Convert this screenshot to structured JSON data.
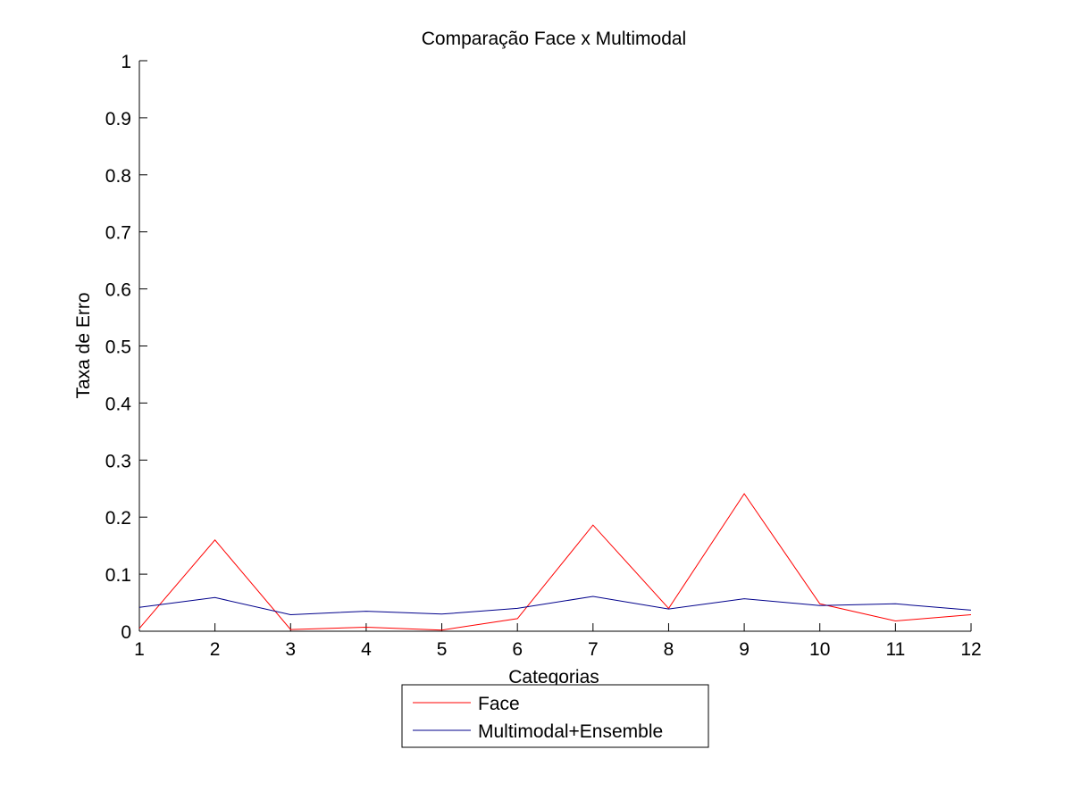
{
  "chart_data": {
    "type": "line",
    "title": "Comparação Face x Multimodal",
    "xlabel": "Categorias",
    "ylabel": "Taxa de Erro",
    "x": [
      1,
      2,
      3,
      4,
      5,
      6,
      7,
      8,
      9,
      10,
      11,
      12
    ],
    "xlim": [
      1,
      12
    ],
    "ylim": [
      0,
      1
    ],
    "xticks": [
      "1",
      "2",
      "3",
      "4",
      "5",
      "6",
      "7",
      "8",
      "9",
      "10",
      "11",
      "12"
    ],
    "yticks": [
      "0",
      "0.1",
      "0.2",
      "0.3",
      "0.4",
      "0.5",
      "0.6",
      "0.7",
      "0.8",
      "0.9",
      "1"
    ],
    "grid": false,
    "legend_position": "bottom-center-outside",
    "series": [
      {
        "name": "Face",
        "color": "#ff0000",
        "values": [
          0.005,
          0.16,
          0.003,
          0.007,
          0.002,
          0.022,
          0.186,
          0.04,
          0.241,
          0.048,
          0.018,
          0.029
        ]
      },
      {
        "name": "Multimodal+Ensemble",
        "color": "#00008b",
        "values": [
          0.042,
          0.059,
          0.029,
          0.035,
          0.03,
          0.04,
          0.061,
          0.039,
          0.057,
          0.045,
          0.048,
          0.037
        ]
      }
    ]
  }
}
